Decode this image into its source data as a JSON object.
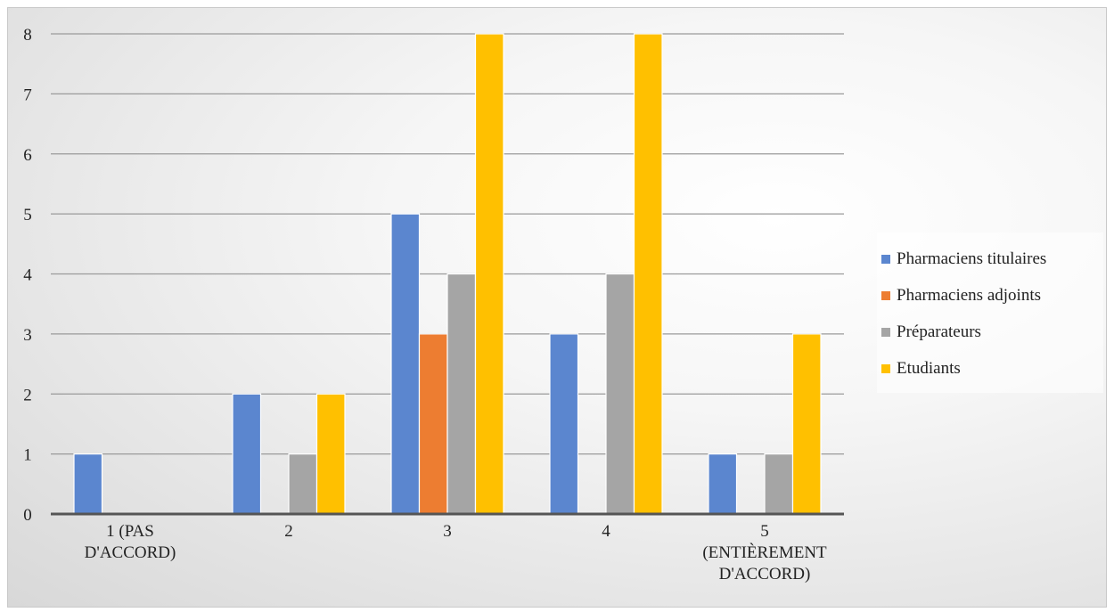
{
  "chart_data": {
    "type": "bar",
    "categories": [
      "1 (PAS D'ACCORD)",
      "2",
      "3",
      "4",
      "5 (ENTIÈREMENT D'ACCORD)"
    ],
    "category_lines": [
      [
        "1 (PAS",
        "D'ACCORD)"
      ],
      [
        "2"
      ],
      [
        "3"
      ],
      [
        "4"
      ],
      [
        "5",
        "(ENTIÈREMENT",
        "D'ACCORD)"
      ]
    ],
    "series": [
      {
        "name": "Pharmaciens titulaires",
        "color": "#5b86cf",
        "values": [
          1,
          2,
          5,
          3,
          1
        ]
      },
      {
        "name": "Pharmaciens adjoints",
        "color": "#ed7d31",
        "values": [
          0,
          0,
          3,
          0,
          0
        ]
      },
      {
        "name": "Préparateurs",
        "color": "#a5a5a5",
        "values": [
          0,
          1,
          4,
          4,
          1
        ]
      },
      {
        "name": "Etudiants",
        "color": "#ffc000",
        "values": [
          0,
          2,
          8,
          8,
          3
        ]
      }
    ],
    "ylim": [
      0,
      8
    ],
    "yticks": [
      0,
      1,
      2,
      3,
      4,
      5,
      6,
      7,
      8
    ],
    "grid": true,
    "legend_position": "right",
    "title": "",
    "xlabel": "",
    "ylabel": ""
  }
}
